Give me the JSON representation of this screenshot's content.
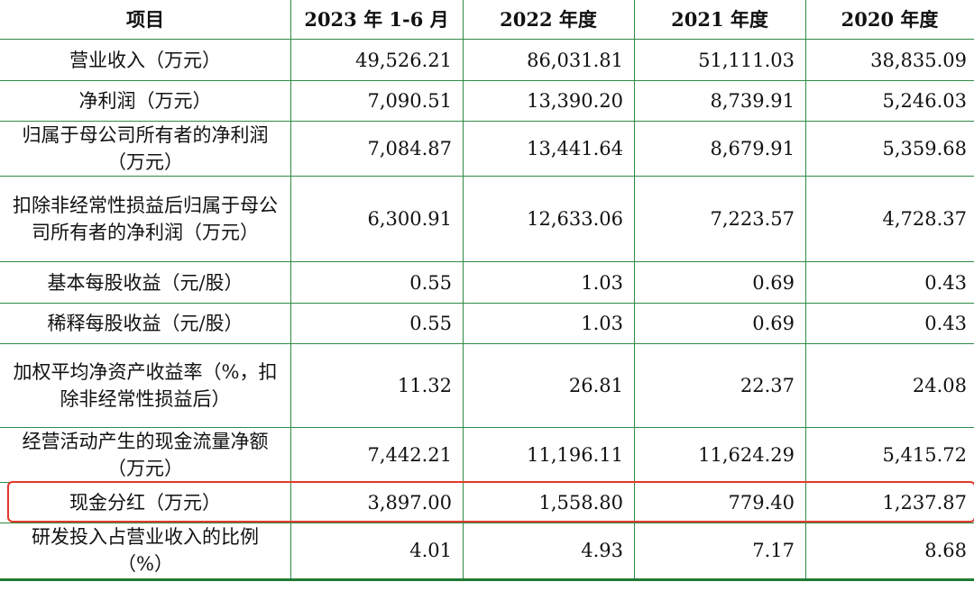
{
  "headers": [
    "项目",
    "2023 年 1-6 月",
    "2022 年度",
    "2021 年度",
    "2020 年度"
  ],
  "rows": [
    {
      "label": "营业收入（万元）",
      "values": [
        "49,526.21",
        "86,031.81",
        "51,111.03",
        "38,835.09"
      ]
    },
    {
      "label": "净利润（万元）",
      "values": [
        "7,090.51",
        "13,390.20",
        "8,739.91",
        "5,246.03"
      ]
    },
    {
      "label": "归属于母公司所有者的净利润（万元）",
      "values": [
        "7,084.87",
        "13,441.64",
        "8,679.91",
        "5,359.68"
      ]
    },
    {
      "label": "扣除非经常性损益后归属于母公司所有者的净利润（万元）",
      "values": [
        "6,300.91",
        "12,633.06",
        "7,223.57",
        "4,728.37"
      ]
    },
    {
      "label": "基本每股收益（元/股）",
      "values": [
        "0.55",
        "1.03",
        "0.69",
        "0.43"
      ]
    },
    {
      "label": "稀释每股收益（元/股）",
      "values": [
        "0.55",
        "1.03",
        "0.69",
        "0.43"
      ]
    },
    {
      "label": "加权平均净资产收益率（%，扣除非经常性损益后）",
      "values": [
        "11.32",
        "26.81",
        "22.37",
        "24.08"
      ]
    },
    {
      "label": "经营活动产生的现金流量净额（万元）",
      "values": [
        "7,442.21",
        "11,196.11",
        "11,624.29",
        "5,415.72"
      ]
    },
    {
      "label": "现金分红（万元）",
      "values": [
        "3,897.00",
        "1,558.80",
        "779.40",
        "1,237.87"
      ]
    },
    {
      "label": "研发投入占营业收入的比例（%）",
      "values": [
        "4.01",
        "4.93",
        "7.17",
        "8.68"
      ]
    }
  ],
  "highlight_color": "#e4382a",
  "grid_color": "#2e8b45"
}
